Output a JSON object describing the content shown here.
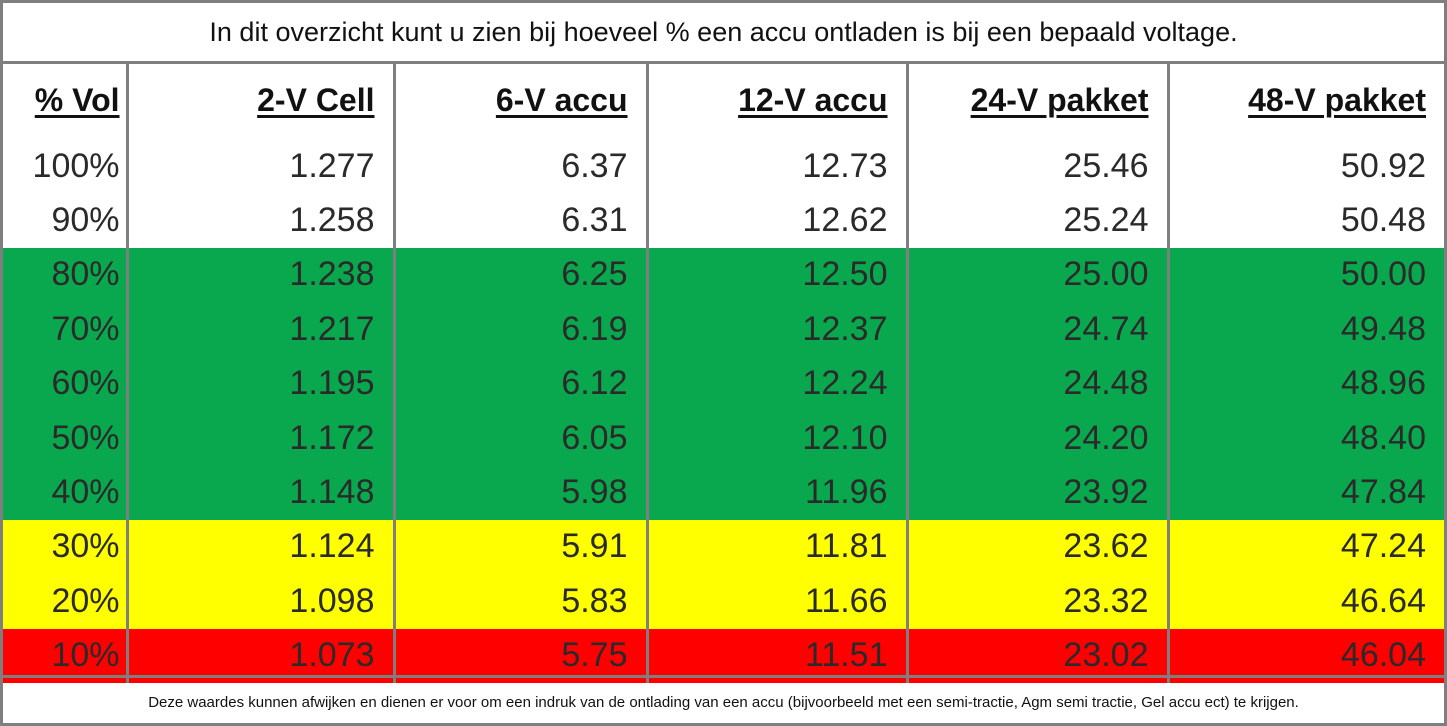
{
  "title": "In dit overzicht kunt u zien bij hoeveel % een accu ontladen is bij een bepaald voltage.",
  "columns": [
    "% Vol",
    "2-V Cell",
    "6-V accu",
    "12-V accu",
    "24-V pakket",
    "48-V pakket"
  ],
  "rows": [
    {
      "band": "white",
      "cells": [
        "100%",
        "1.277",
        "6.37",
        "12.73",
        "25.46",
        "50.92"
      ]
    },
    {
      "band": "white",
      "cells": [
        "90%",
        "1.258",
        "6.31",
        "12.62",
        "25.24",
        "50.48"
      ]
    },
    {
      "band": "green",
      "cells": [
        "80%",
        "1.238",
        "6.25",
        "12.50",
        "25.00",
        "50.00"
      ]
    },
    {
      "band": "green",
      "cells": [
        "70%",
        "1.217",
        "6.19",
        "12.37",
        "24.74",
        "49.48"
      ]
    },
    {
      "band": "green",
      "cells": [
        "60%",
        "1.195",
        "6.12",
        "12.24",
        "24.48",
        "48.96"
      ]
    },
    {
      "band": "green",
      "cells": [
        "50%",
        "1.172",
        "6.05",
        "12.10",
        "24.20",
        "48.40"
      ]
    },
    {
      "band": "green",
      "cells": [
        "40%",
        "1.148",
        "5.98",
        "11.96",
        "23.92",
        "47.84"
      ]
    },
    {
      "band": "yellow",
      "cells": [
        "30%",
        "1.124",
        "5.91",
        "11.81",
        "23.62",
        "47.24"
      ]
    },
    {
      "band": "yellow",
      "cells": [
        "20%",
        "1.098",
        "5.83",
        "11.66",
        "23.32",
        "46.64"
      ]
    },
    {
      "band": "red",
      "cells": [
        "10%",
        "1.073",
        "5.75",
        "11.51",
        "23.02",
        "46.04"
      ]
    }
  ],
  "band_colors": {
    "white": "#ffffff",
    "green": "#0aa84e",
    "yellow": "#ffff00",
    "red": "#ff0000"
  },
  "footer": "Deze waardes kunnen afwijken en dienen er voor om een indruk van de ontlading van een accu (bijvoorbeeld met een semi-tractie, Agm semi tractie, Gel accu ect) te krijgen."
}
